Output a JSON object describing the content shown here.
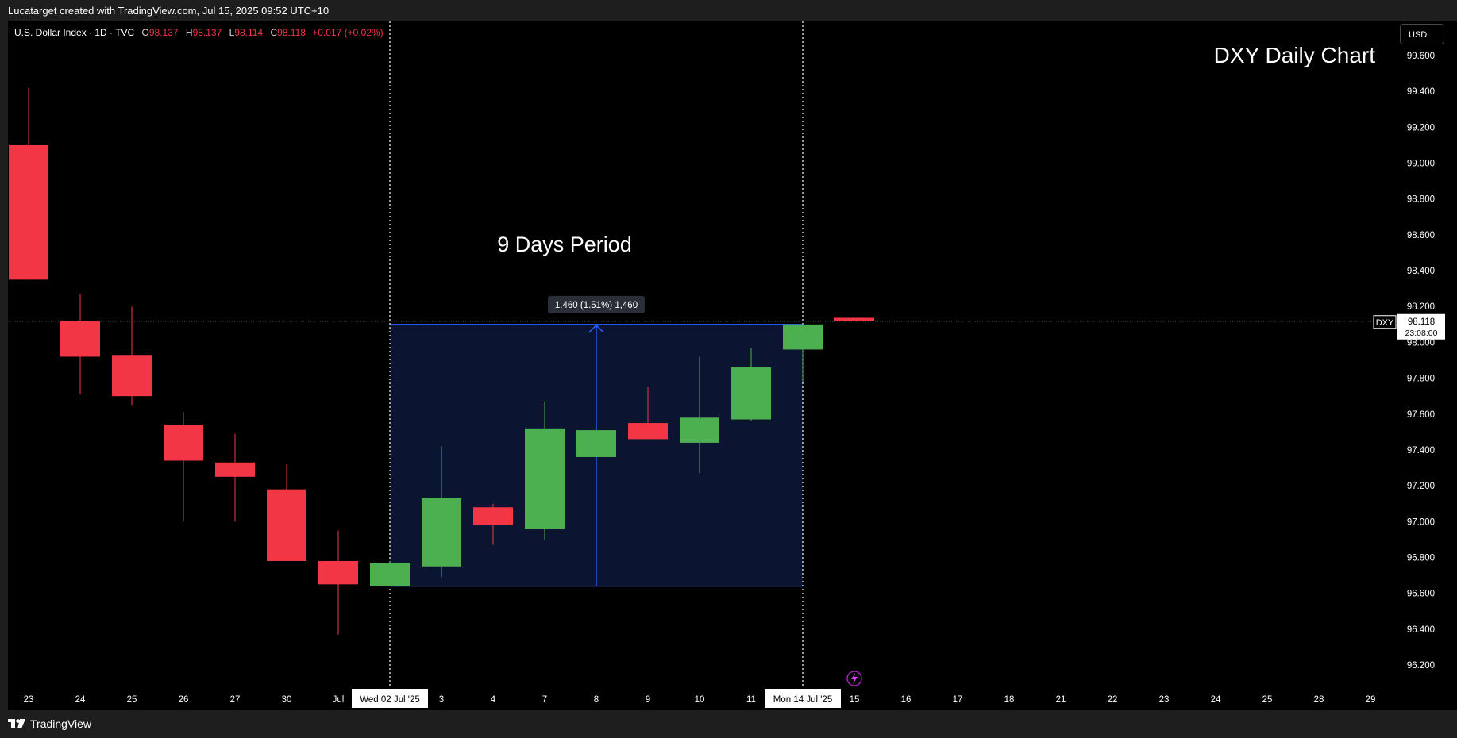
{
  "header": {
    "credit": "Lucatarget created with TradingView.com, Jul 15, 2025 09:52 UTC+10"
  },
  "legend": {
    "symbol": "U.S. Dollar Index · 1D · TVC",
    "open_label": "O",
    "open": "98.137",
    "high_label": "H",
    "high": "98.137",
    "low_label": "L",
    "low": "98.114",
    "close_label": "C",
    "close": "98.118",
    "change": "+0.017 (+0.02%)"
  },
  "title": "DXY Daily Chart",
  "annotation": "9 Days Period",
  "measure_label": "1.460 (1.51%) 1,460",
  "currency": "USD",
  "price_tag": {
    "symbol": "DXY",
    "price": "98.118",
    "countdown": "23:08:00"
  },
  "crosshair_labels": [
    "Wed 02 Jul '25",
    "Mon 14 Jul '25"
  ],
  "branding": "TradingView",
  "colors": {
    "up": "#4caf50",
    "down": "#f23645",
    "range_fill": "#0b1431",
    "range_line": "#2962ff",
    "background": "#000000"
  },
  "chart_data": {
    "type": "candlestick",
    "x_ticks": [
      "23",
      "24",
      "25",
      "26",
      "27",
      "30",
      "Jul",
      "Wed 02 Jul '25",
      "3",
      "4",
      "7",
      "8",
      "9",
      "10",
      "11",
      "Mon 14 Jul '25",
      "15",
      "16",
      "17",
      "18",
      "21",
      "22",
      "23",
      "24",
      "25",
      "28",
      "29"
    ],
    "y_ticks": [
      "96.200",
      "96.400",
      "96.600",
      "96.800",
      "97.000",
      "97.200",
      "97.400",
      "97.600",
      "97.800",
      "98.000",
      "98.200",
      "98.400",
      "98.600",
      "98.800",
      "99.000",
      "99.200",
      "99.400",
      "99.600"
    ],
    "ylim": [
      96.08,
      99.75
    ],
    "candles": [
      {
        "date": "Jun 23",
        "open": 99.1,
        "high": 99.42,
        "low": 98.35,
        "close": 98.35
      },
      {
        "date": "Jun 24",
        "open": 98.12,
        "high": 98.27,
        "low": 97.71,
        "close": 97.92
      },
      {
        "date": "Jun 25",
        "open": 97.93,
        "high": 98.2,
        "low": 97.65,
        "close": 97.7
      },
      {
        "date": "Jun 26",
        "open": 97.54,
        "high": 97.61,
        "low": 97.0,
        "close": 97.34
      },
      {
        "date": "Jun 27",
        "open": 97.33,
        "high": 97.49,
        "low": 97.0,
        "close": 97.25
      },
      {
        "date": "Jun 30",
        "open": 97.18,
        "high": 97.32,
        "low": 96.78,
        "close": 96.78
      },
      {
        "date": "Jul 1",
        "open": 96.78,
        "high": 96.95,
        "low": 96.37,
        "close": 96.65
      },
      {
        "date": "Jul 2",
        "open": 96.64,
        "high": 96.78,
        "low": 96.64,
        "close": 96.77
      },
      {
        "date": "Jul 3",
        "open": 96.75,
        "high": 97.42,
        "low": 96.69,
        "close": 97.13
      },
      {
        "date": "Jul 4",
        "open": 97.08,
        "high": 97.1,
        "low": 96.87,
        "close": 96.98
      },
      {
        "date": "Jul 7",
        "open": 96.96,
        "high": 97.67,
        "low": 96.9,
        "close": 97.52
      },
      {
        "date": "Jul 8",
        "open": 97.36,
        "high": 97.51,
        "low": 97.36,
        "close": 97.51
      },
      {
        "date": "Jul 9",
        "open": 97.55,
        "high": 97.75,
        "low": 97.46,
        "close": 97.46
      },
      {
        "date": "Jul 10",
        "open": 97.44,
        "high": 97.92,
        "low": 97.27,
        "close": 97.58
      },
      {
        "date": "Jul 11",
        "open": 97.57,
        "high": 97.97,
        "low": 97.56,
        "close": 97.86
      },
      {
        "date": "Jul 14",
        "open": 97.96,
        "high": 98.1,
        "low": 97.78,
        "close": 98.1
      },
      {
        "date": "Jul 15",
        "open": 98.137,
        "high": 98.137,
        "low": 98.114,
        "close": 98.118
      }
    ],
    "range_box": {
      "from": "Jul 2",
      "to": "Jul 14",
      "low": 96.64,
      "high": 98.1,
      "change": 1.46,
      "change_pct": 1.51,
      "ticks": 1460
    },
    "last_price": 98.118,
    "grid": false
  }
}
